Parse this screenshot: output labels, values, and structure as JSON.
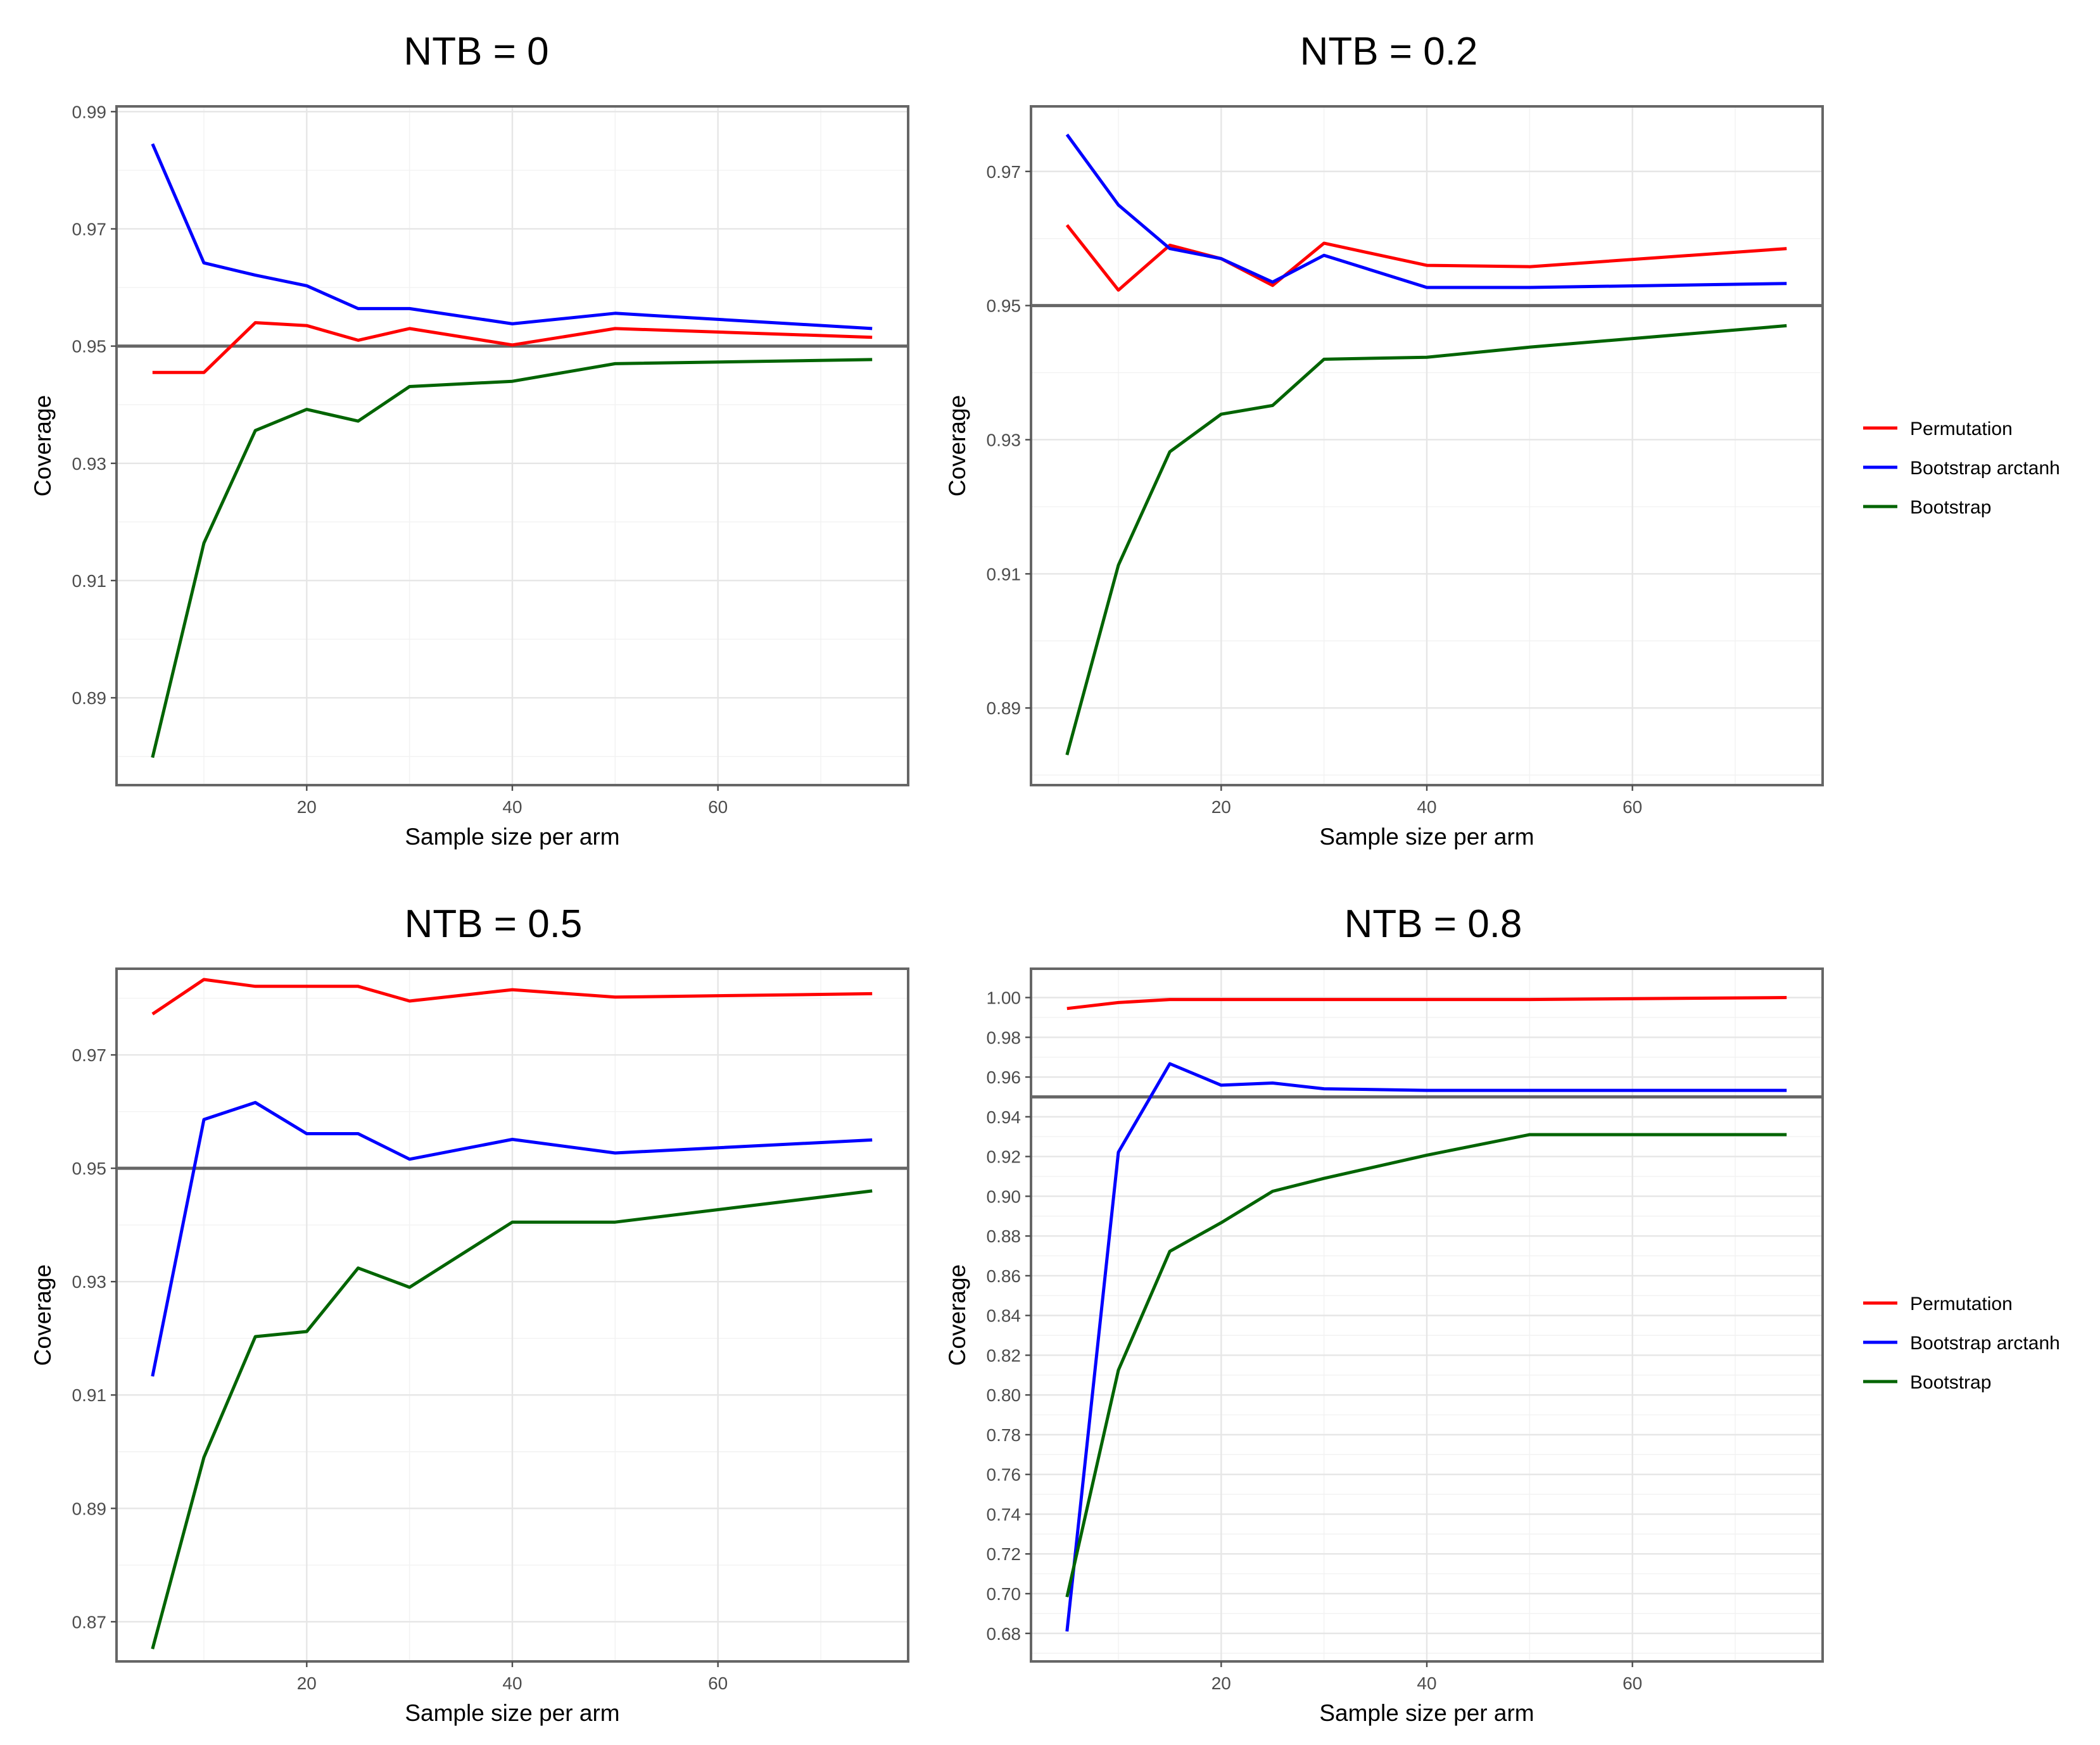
{
  "legend": {
    "items": [
      {
        "label": "Permutation",
        "color": "#ff0000"
      },
      {
        "label": "Bootstrap arctanh",
        "color": "#0000ff"
      },
      {
        "label": "Bootstrap",
        "color": "#006400"
      }
    ]
  },
  "chart_data": [
    {
      "type": "line",
      "title": "NTB = 0",
      "xlabel": "Sample size per arm",
      "ylabel": "Coverage",
      "xlim": [
        1.5,
        78.5
      ],
      "ylim": [
        0.8751,
        0.9909
      ],
      "x_ticks": [
        20,
        40,
        60
      ],
      "x_tick_labels": [
        "20",
        "40",
        "60"
      ],
      "x_minor_ticks": [
        10,
        30,
        50,
        70
      ],
      "y_ticks": [
        0.89,
        0.91,
        0.93,
        0.95,
        0.97,
        0.99
      ],
      "y_tick_labels": [
        "0.89",
        "0.91",
        "0.93",
        "0.95",
        "0.97",
        "0.99"
      ],
      "y_minor_ticks": [
        0.88,
        0.9,
        0.92,
        0.94,
        0.96,
        0.98
      ],
      "hline": 0.95,
      "x": [
        5,
        10,
        15,
        20,
        25,
        30,
        40,
        50,
        75
      ],
      "series": [
        {
          "name": "Permutation",
          "color": "#ff0000",
          "values": [
            0.9455,
            0.9455,
            0.954,
            0.9535,
            0.951,
            0.953,
            0.9502,
            0.953,
            0.9515
          ]
        },
        {
          "name": "Bootstrap arctanh",
          "color": "#0000ff",
          "values": [
            0.9845,
            0.9642,
            0.9621,
            0.9603,
            0.9564,
            0.9564,
            0.9538,
            0.9556,
            0.953
          ]
        },
        {
          "name": "Bootstrap",
          "color": "#006400",
          "values": [
            0.8798,
            0.9164,
            0.9356,
            0.9392,
            0.9372,
            0.9431,
            0.944,
            0.947,
            0.9477
          ]
        }
      ]
    },
    {
      "type": "line",
      "title": "NTB = 0.2",
      "xlabel": "Sample size per arm",
      "ylabel": "Coverage",
      "xlim": [
        1.5,
        78.5
      ],
      "ylim": [
        0.8785,
        0.9797
      ],
      "x_ticks": [
        20,
        40,
        60
      ],
      "x_tick_labels": [
        "20",
        "40",
        "60"
      ],
      "x_minor_ticks": [
        10,
        30,
        50,
        70
      ],
      "y_ticks": [
        0.89,
        0.91,
        0.93,
        0.95,
        0.97
      ],
      "y_tick_labels": [
        "0.89",
        "0.91",
        "0.93",
        "0.95",
        "0.97"
      ],
      "y_minor_ticks": [
        0.88,
        0.9,
        0.92,
        0.94,
        0.96
      ],
      "hline": 0.95,
      "x": [
        5,
        10,
        15,
        20,
        25,
        30,
        40,
        50,
        75
      ],
      "series": [
        {
          "name": "Permutation",
          "color": "#ff0000",
          "values": [
            0.962,
            0.9523,
            0.959,
            0.957,
            0.953,
            0.9593,
            0.956,
            0.9558,
            0.9585
          ]
        },
        {
          "name": "Bootstrap arctanh",
          "color": "#0000ff",
          "values": [
            0.9755,
            0.965,
            0.9585,
            0.957,
            0.9535,
            0.9575,
            0.9527,
            0.9527,
            0.9533
          ]
        },
        {
          "name": "Bootstrap",
          "color": "#006400",
          "values": [
            0.883,
            0.9113,
            0.9282,
            0.9338,
            0.9351,
            0.942,
            0.9423,
            0.9438,
            0.947
          ]
        }
      ]
    },
    {
      "type": "line",
      "title": "NTB = 0.5",
      "xlabel": "Sample size per arm",
      "ylabel": "Coverage",
      "xlim": [
        1.5,
        78.5
      ],
      "ylim": [
        0.863,
        0.9852
      ],
      "x_ticks": [
        20,
        40,
        60
      ],
      "x_tick_labels": [
        "20",
        "40",
        "60"
      ],
      "x_minor_ticks": [
        10,
        30,
        50,
        70
      ],
      "y_ticks": [
        0.87,
        0.89,
        0.91,
        0.93,
        0.95,
        0.97
      ],
      "y_tick_labels": [
        "0.87",
        "0.89",
        "0.91",
        "0.93",
        "0.95",
        "0.97"
      ],
      "y_minor_ticks": [
        0.88,
        0.9,
        0.92,
        0.94,
        0.96,
        0.98
      ],
      "hline": 0.95,
      "x": [
        5,
        10,
        15,
        20,
        25,
        30,
        40,
        50,
        75
      ],
      "series": [
        {
          "name": "Permutation",
          "color": "#ff0000",
          "values": [
            0.9772,
            0.9833,
            0.9821,
            0.9821,
            0.9821,
            0.9795,
            0.9815,
            0.9802,
            0.9808
          ]
        },
        {
          "name": "Bootstrap arctanh",
          "color": "#0000ff",
          "values": [
            0.9133,
            0.9586,
            0.9616,
            0.9561,
            0.9561,
            0.9516,
            0.9551,
            0.9527,
            0.955
          ]
        },
        {
          "name": "Bootstrap",
          "color": "#006400",
          "values": [
            0.8652,
            0.899,
            0.9203,
            0.9212,
            0.9324,
            0.929,
            0.9405,
            0.9405,
            0.946
          ]
        }
      ]
    },
    {
      "type": "line",
      "title": "NTB = 0.8",
      "xlabel": "Sample size per arm",
      "ylabel": "Coverage",
      "xlim": [
        1.5,
        78.5
      ],
      "ylim": [
        0.6659,
        1.0145
      ],
      "x_ticks": [
        20,
        40,
        60
      ],
      "x_tick_labels": [
        "20",
        "40",
        "60"
      ],
      "x_minor_ticks": [
        10,
        30,
        50,
        70
      ],
      "y_ticks": [
        0.68,
        0.7,
        0.72,
        0.74,
        0.76,
        0.78,
        0.8,
        0.82,
        0.84,
        0.86,
        0.88,
        0.9,
        0.92,
        0.94,
        0.96,
        0.98,
        1.0
      ],
      "y_tick_labels": [
        "0.68",
        "0.70",
        "0.72",
        "0.74",
        "0.76",
        "0.78",
        "0.80",
        "0.82",
        "0.84",
        "0.86",
        "0.88",
        "0.90",
        "0.92",
        "0.94",
        "0.96",
        "0.98",
        "1.00"
      ],
      "y_minor_ticks": [
        0.67,
        0.69,
        0.71,
        0.73,
        0.75,
        0.77,
        0.79,
        0.81,
        0.83,
        0.85,
        0.87,
        0.89,
        0.91,
        0.93,
        0.95,
        0.97,
        0.99
      ],
      "hline": 0.95,
      "x": [
        5,
        10,
        15,
        20,
        25,
        30,
        40,
        50,
        75
      ],
      "series": [
        {
          "name": "Permutation",
          "color": "#ff0000",
          "values": [
            0.9945,
            0.9975,
            0.999,
            0.999,
            0.999,
            0.999,
            0.999,
            0.999,
            1.0
          ]
        },
        {
          "name": "Bootstrap arctanh",
          "color": "#0000ff",
          "values": [
            0.681,
            0.9222,
            0.9667,
            0.9559,
            0.957,
            0.9541,
            0.9533,
            0.9533,
            0.9533
          ]
        },
        {
          "name": "Bootstrap",
          "color": "#006400",
          "values": [
            0.6983,
            0.8125,
            0.8723,
            0.8867,
            0.9025,
            0.909,
            0.9207,
            0.931,
            0.931
          ]
        }
      ]
    }
  ]
}
